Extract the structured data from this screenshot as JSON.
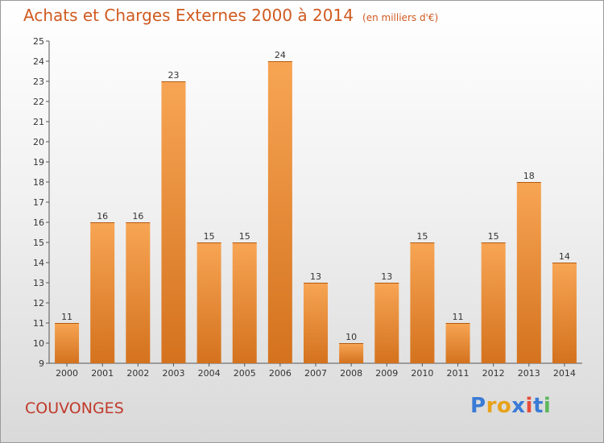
{
  "title": {
    "main": "Achats et Charges Externes 2000 à 2014",
    "unit": "(en milliers d'€)"
  },
  "commune": "COUVONGES",
  "logo": {
    "text": "Proxiti",
    "letters": [
      {
        "ch": "P",
        "color": "#3a7bd5"
      },
      {
        "ch": "r",
        "color": "#e8a21a"
      },
      {
        "ch": "o",
        "color": "#e8a21a"
      },
      {
        "ch": "x",
        "color": "#3a7bd5"
      },
      {
        "ch": "i",
        "color": "#e74c3c"
      },
      {
        "ch": "t",
        "color": "#3a7bd5"
      },
      {
        "ch": "i",
        "color": "#5cb85c"
      }
    ]
  },
  "chart_data": {
    "type": "bar",
    "categories": [
      "2000",
      "2001",
      "2002",
      "2003",
      "2004",
      "2005",
      "2006",
      "2007",
      "2008",
      "2009",
      "2010",
      "2011",
      "2012",
      "2013",
      "2014"
    ],
    "values": [
      11,
      16,
      16,
      23,
      15,
      15,
      24,
      13,
      10,
      13,
      15,
      11,
      15,
      18,
      14
    ],
    "ylim": [
      9,
      25
    ],
    "yticks": [
      9,
      10,
      11,
      12,
      13,
      14,
      15,
      16,
      17,
      18,
      19,
      20,
      21,
      22,
      23,
      24,
      25
    ],
    "grid": false,
    "bar_color_top": "#f7a554",
    "bar_color_bottom": "#d4721e"
  }
}
